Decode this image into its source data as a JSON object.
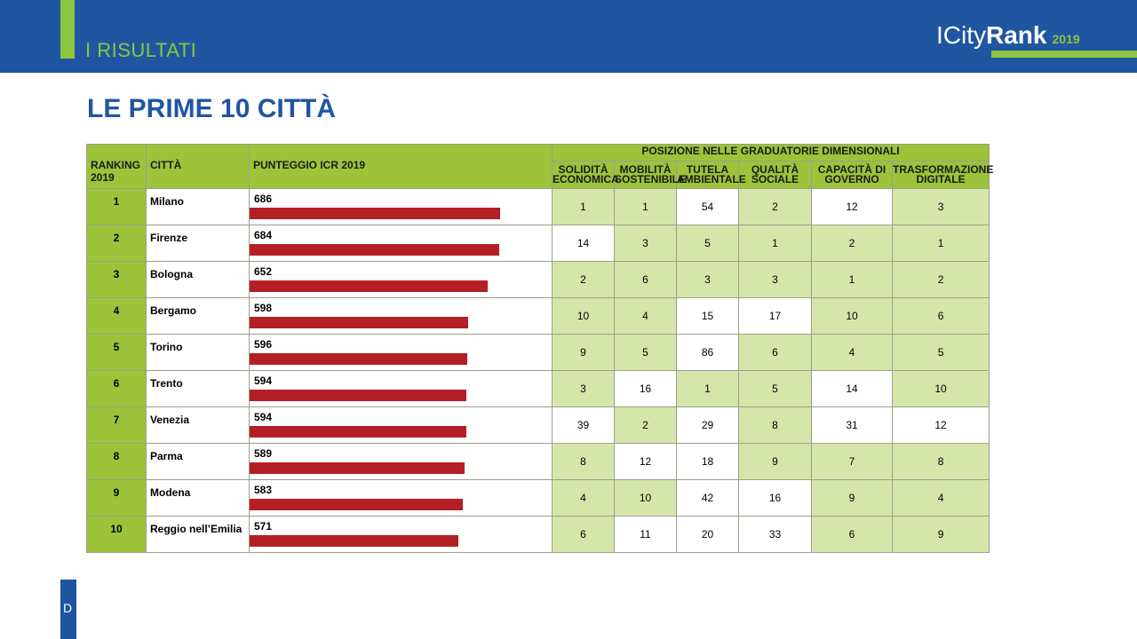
{
  "header": {
    "section": "I RISULTATI",
    "logo_prefix": "ICity",
    "logo_bold": "Rank",
    "logo_year": "2019"
  },
  "title": "LE PRIME 10 CITTÀ",
  "side_tab": "D",
  "table": {
    "col_ranking": "RANKING 2019",
    "col_city": "CITTÀ",
    "col_score": "PUNTEGGIO ICR 2019",
    "group_header": "POSIZIONE NELLE GRADUATORIE DIMENSIONALI",
    "dimensions": [
      "SOLIDITÀ ECONOMICA",
      "MOBILITÀ SOSTENIBILE",
      "TUTELA AMBIENTALE",
      "QUALITÀ SOCIALE",
      "CAPACITÀ DI GOVERNO",
      "TRASFORMAZIONE DIGITALE"
    ],
    "rows": [
      {
        "rank": "1",
        "city": "Milano",
        "score": 686,
        "positions": [
          "1",
          "1",
          "54",
          "2",
          "12",
          "3"
        ],
        "highlight": [
          true,
          true,
          false,
          true,
          false,
          true
        ]
      },
      {
        "rank": "2",
        "city": "Firenze",
        "score": 684,
        "positions": [
          "14",
          "3",
          "5",
          "1",
          "2",
          "1"
        ],
        "highlight": [
          false,
          true,
          true,
          true,
          true,
          true
        ]
      },
      {
        "rank": "3",
        "city": "Bologna",
        "score": 652,
        "positions": [
          "2",
          "6",
          "3",
          "3",
          "1",
          "2"
        ],
        "highlight": [
          true,
          true,
          true,
          true,
          true,
          true
        ]
      },
      {
        "rank": "4",
        "city": "Bergamo",
        "score": 598,
        "positions": [
          "10",
          "4",
          "15",
          "17",
          "10",
          "6"
        ],
        "highlight": [
          true,
          true,
          false,
          false,
          true,
          true
        ]
      },
      {
        "rank": "5",
        "city": "Torino",
        "score": 596,
        "positions": [
          "9",
          "5",
          "86",
          "6",
          "4",
          "5"
        ],
        "highlight": [
          true,
          true,
          false,
          true,
          true,
          true
        ]
      },
      {
        "rank": "6",
        "city": "Trento",
        "score": 594,
        "positions": [
          "3",
          "16",
          "1",
          "5",
          "14",
          "10"
        ],
        "highlight": [
          true,
          false,
          true,
          true,
          false,
          true
        ]
      },
      {
        "rank": "7",
        "city": "Venezia",
        "score": 594,
        "positions": [
          "39",
          "2",
          "29",
          "8",
          "31",
          "12"
        ],
        "highlight": [
          false,
          true,
          false,
          true,
          false,
          false
        ]
      },
      {
        "rank": "8",
        "city": "Parma",
        "score": 589,
        "positions": [
          "8",
          "12",
          "18",
          "9",
          "7",
          "8"
        ],
        "highlight": [
          true,
          false,
          false,
          true,
          true,
          true
        ]
      },
      {
        "rank": "9",
        "city": "Modena",
        "score": 583,
        "positions": [
          "4",
          "10",
          "42",
          "16",
          "9",
          "4"
        ],
        "highlight": [
          true,
          true,
          false,
          false,
          true,
          true
        ]
      },
      {
        "rank": "10",
        "city": "Reggio nell’Emilia",
        "score": 571,
        "positions": [
          "6",
          "11",
          "20",
          "33",
          "6",
          "9"
        ],
        "highlight": [
          true,
          false,
          false,
          false,
          true,
          true
        ]
      }
    ]
  },
  "colors": {
    "primary_blue": "#1f56a1",
    "accent_green": "#8dc63f",
    "header_green": "#9dc33b",
    "light_green": "#d6e6aa",
    "bar_red": "#b31f24"
  }
}
